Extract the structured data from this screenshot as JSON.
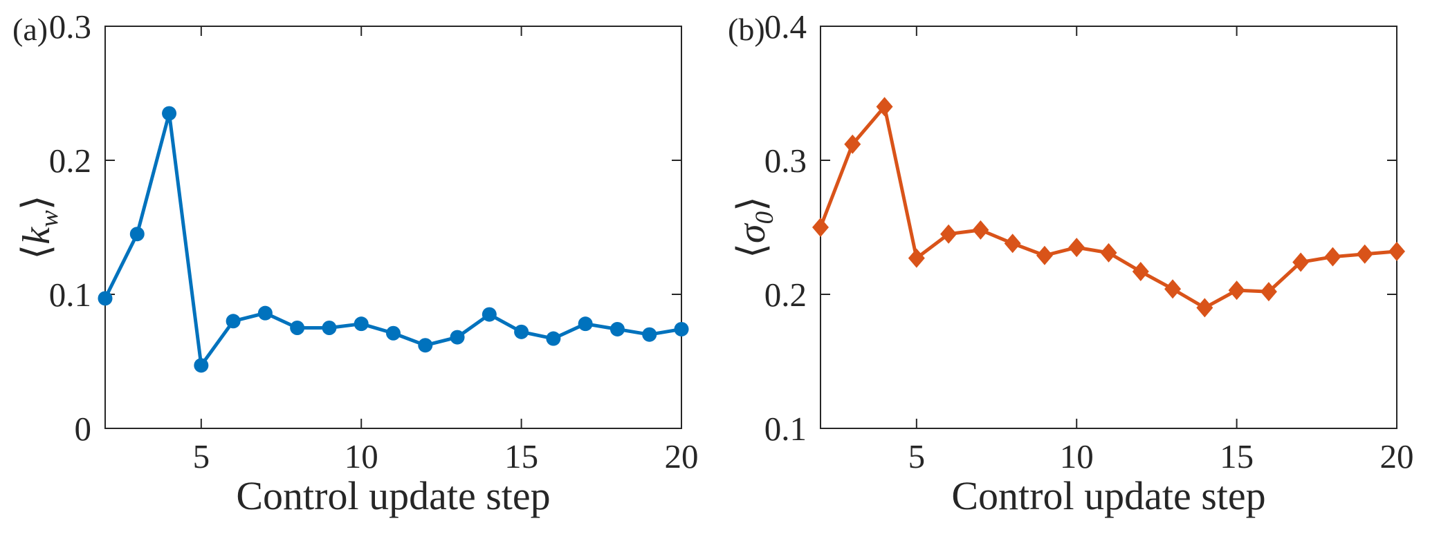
{
  "figure": {
    "background": "#ffffff",
    "axis_color": "#262626",
    "text_color": "#262626"
  },
  "chart_data": [
    {
      "type": "line",
      "panel_label": "(a)",
      "title": "",
      "xlabel": "Control update step",
      "ylabel": "⟨k_w⟩",
      "ylabel_parts": {
        "open": "⟨",
        "symbol": "k",
        "subscript": "w",
        "close": "⟩"
      },
      "color": "#0072BD",
      "marker": "circle",
      "grid": false,
      "legend": "none",
      "xlim": [
        2,
        20
      ],
      "ylim": [
        0,
        0.3
      ],
      "xticks": [
        5,
        10,
        15,
        20
      ],
      "xticklabels": [
        "5",
        "10",
        "15",
        "20"
      ],
      "yticks": [
        0,
        0.1,
        0.2,
        0.3
      ],
      "yticklabels": [
        "0",
        "0.1",
        "0.2",
        "0.3"
      ],
      "x": [
        2,
        3,
        4,
        5,
        6,
        7,
        8,
        9,
        10,
        11,
        12,
        13,
        14,
        15,
        16,
        17,
        18,
        19,
        20
      ],
      "y": [
        0.097,
        0.145,
        0.235,
        0.047,
        0.08,
        0.086,
        0.075,
        0.075,
        0.078,
        0.071,
        0.062,
        0.068,
        0.085,
        0.072,
        0.067,
        0.078,
        0.074,
        0.07,
        0.074
      ]
    },
    {
      "type": "line",
      "panel_label": "(b)",
      "title": "",
      "xlabel": "Control update step",
      "ylabel": "⟨σ_0⟩",
      "ylabel_parts": {
        "open": "⟨",
        "symbol": "σ",
        "subscript": "0",
        "close": "⟩"
      },
      "color": "#D95319",
      "marker": "diamond",
      "grid": false,
      "legend": "none",
      "xlim": [
        2,
        20
      ],
      "ylim": [
        0.1,
        0.4
      ],
      "xticks": [
        5,
        10,
        15,
        20
      ],
      "xticklabels": [
        "5",
        "10",
        "15",
        "20"
      ],
      "yticks": [
        0.1,
        0.2,
        0.3,
        0.4
      ],
      "yticklabels": [
        "0.1",
        "0.2",
        "0.3",
        "0.4"
      ],
      "x": [
        2,
        3,
        4,
        5,
        6,
        7,
        8,
        9,
        10,
        11,
        12,
        13,
        14,
        15,
        16,
        17,
        18,
        19,
        20
      ],
      "y": [
        0.25,
        0.312,
        0.34,
        0.227,
        0.245,
        0.248,
        0.238,
        0.229,
        0.235,
        0.231,
        0.217,
        0.204,
        0.19,
        0.203,
        0.202,
        0.224,
        0.228,
        0.23,
        0.232
      ]
    }
  ]
}
